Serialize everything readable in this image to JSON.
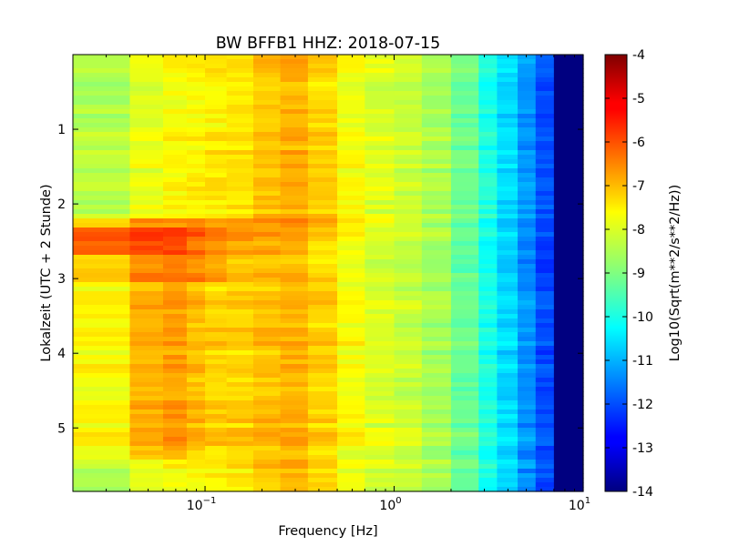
{
  "chart_data": {
    "type": "heatmap",
    "title": "BW BFFB1 HHZ: 2018-07-15",
    "xlabel": "Frequency [Hz]",
    "ylabel": "Lokalzeit (UTC + 2 Stunde)",
    "x_scale": "log",
    "xlim": [
      0.02,
      10
    ],
    "ylim": [
      5.85,
      0
    ],
    "x_ticks": [
      {
        "value": 0.1,
        "base": "10",
        "exp": "−1"
      },
      {
        "value": 1,
        "base": "10",
        "exp": "0"
      },
      {
        "value": 10,
        "base": "10",
        "exp": "1"
      }
    ],
    "y_ticks": [
      {
        "value": 1,
        "label": "1"
      },
      {
        "value": 2,
        "label": "2"
      },
      {
        "value": 3,
        "label": "3"
      },
      {
        "value": 4,
        "label": "4"
      },
      {
        "value": 5,
        "label": "5"
      }
    ],
    "colorbar": {
      "label": "Log10(Sqrt(m**2/s**2/Hz))",
      "range": [
        -14,
        -4
      ],
      "ticks": [
        "-4",
        "-5",
        "-6",
        "-7",
        "-8",
        "-9",
        "-10",
        "-11",
        "-12",
        "-13",
        "-14"
      ],
      "colormap": "jet"
    },
    "freq_bins": [
      0.02,
      0.04,
      0.06,
      0.08,
      0.1,
      0.13,
      0.18,
      0.25,
      0.35,
      0.5,
      0.7,
      1.0,
      1.4,
      2.0,
      2.8,
      3.5,
      4.5,
      5.6,
      7.0,
      10
    ],
    "base_spectrum": [
      -8.5,
      -8.0,
      -7.8,
      -7.7,
      -7.6,
      -7.5,
      -7.2,
      -7.0,
      -7.3,
      -7.8,
      -8.1,
      -8.3,
      -8.6,
      -9.2,
      -10.0,
      -10.6,
      -11.3,
      -12.0,
      -14.0
    ],
    "events": [
      {
        "time_start": 2.15,
        "time_end": 2.3,
        "boost": [
          1.4,
          1.5,
          1.3,
          1.2,
          1.0,
          0.8,
          0.7,
          0.6,
          0.6,
          0.5,
          0.4,
          0.2,
          0.1,
          0,
          0,
          0,
          0,
          0,
          0
        ]
      },
      {
        "time_start": 2.3,
        "time_end": 2.65,
        "boost": [
          2.4,
          2.2,
          2.0,
          1.5,
          1.2,
          0.8,
          0.4,
          0.2,
          0,
          0,
          0,
          0,
          0,
          0,
          0,
          0,
          0,
          0,
          0
        ]
      },
      {
        "time_start": 2.65,
        "time_end": 3.0,
        "boost": [
          1.4,
          1.5,
          1.5,
          1.2,
          0.8,
          0.4,
          0.2,
          0,
          0,
          0,
          0,
          0,
          0,
          0,
          0,
          0,
          0,
          0,
          0
        ]
      },
      {
        "time_start": 3.0,
        "time_end": 5.4,
        "boost": [
          0.8,
          1.0,
          1.0,
          0.6,
          0.3,
          0.2,
          0.1,
          0,
          0,
          0,
          0,
          0,
          0,
          0,
          0,
          0,
          0,
          0,
          0
        ]
      }
    ]
  }
}
